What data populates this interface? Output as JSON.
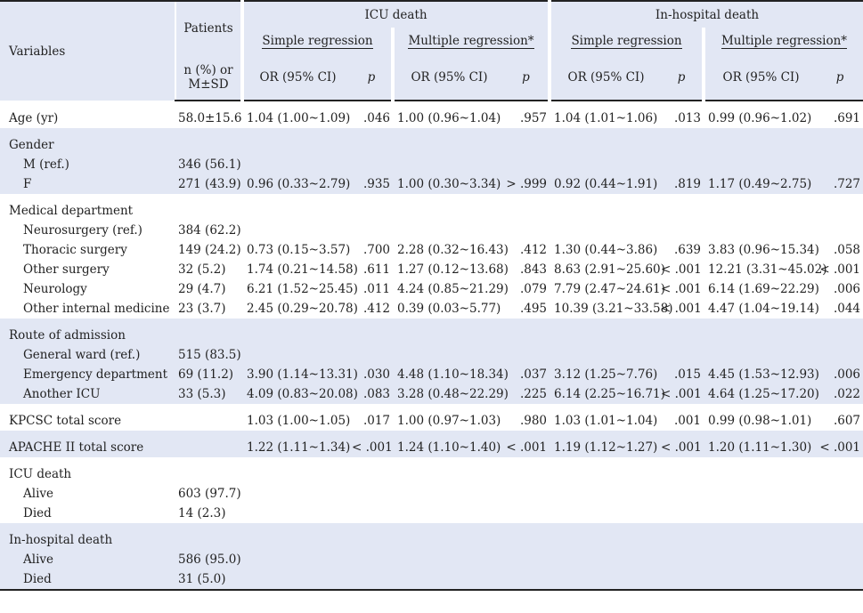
{
  "header": {
    "variables": "Variables",
    "patients": "Patients",
    "patients_unit_line1": "n (%) or",
    "patients_unit_line2": "M±SD",
    "icu_death": "ICU death",
    "inhospital_death": "In-hospital death",
    "simple_regression": "Simple regression",
    "multiple_regression": "Multiple regression*",
    "or_ci": "OR (95% CI)",
    "p": "p"
  },
  "groups": [
    {
      "shaded": false,
      "rows": [
        {
          "label": "Age (yr)",
          "sub": false,
          "patients": "58.0±15.6",
          "icu_s_or": "1.04 (1.00~1.09)",
          "icu_s_p": ".046",
          "icu_m_or": "1.00 (0.96~1.04)",
          "icu_m_p": ".957",
          "hos_s_or": "1.04 (1.01~1.06)",
          "hos_s_p": ".013",
          "hos_m_or": "0.99 (0.96~1.02)",
          "hos_m_p": ".691"
        }
      ]
    },
    {
      "shaded": true,
      "rows": [
        {
          "label": "Gender",
          "sub": false,
          "patients": "",
          "icu_s_or": "",
          "icu_s_p": "",
          "icu_m_or": "",
          "icu_m_p": "",
          "hos_s_or": "",
          "hos_s_p": "",
          "hos_m_or": "",
          "hos_m_p": ""
        },
        {
          "label": "M (ref.)",
          "sub": true,
          "patients": "346 (56.1)",
          "icu_s_or": "",
          "icu_s_p": "",
          "icu_m_or": "",
          "icu_m_p": "",
          "hos_s_or": "",
          "hos_s_p": "",
          "hos_m_or": "",
          "hos_m_p": ""
        },
        {
          "label": "F",
          "sub": true,
          "patients": "271 (43.9)",
          "icu_s_or": "0.96 (0.33~2.79)",
          "icu_s_p": ".935",
          "icu_m_or": "1.00 (0.30~3.34)",
          "icu_m_p": "> .999",
          "hos_s_or": "0.92 (0.44~1.91)",
          "hos_s_p": ".819",
          "hos_m_or": "1.17 (0.49~2.75)",
          "hos_m_p": ".727"
        }
      ]
    },
    {
      "shaded": false,
      "rows": [
        {
          "label": "Medical department",
          "sub": false,
          "patients": "",
          "icu_s_or": "",
          "icu_s_p": "",
          "icu_m_or": "",
          "icu_m_p": "",
          "hos_s_or": "",
          "hos_s_p": "",
          "hos_m_or": "",
          "hos_m_p": ""
        },
        {
          "label": "Neurosurgery (ref.)",
          "sub": true,
          "patients": "384 (62.2)",
          "icu_s_or": "",
          "icu_s_p": "",
          "icu_m_or": "",
          "icu_m_p": "",
          "hos_s_or": "",
          "hos_s_p": "",
          "hos_m_or": "",
          "hos_m_p": ""
        },
        {
          "label": "Thoracic surgery",
          "sub": true,
          "patients": "149 (24.2)",
          "icu_s_or": "0.73 (0.15~3.57)",
          "icu_s_p": ".700",
          "icu_m_or": "2.28 (0.32~16.43)",
          "icu_m_p": ".412",
          "hos_s_or": "1.30 (0.44~3.86)",
          "hos_s_p": ".639",
          "hos_m_or": "3.83 (0.96~15.34)",
          "hos_m_p": ".058"
        },
        {
          "label": "Other surgery",
          "sub": true,
          "patients": "32 (5.2)",
          "icu_s_or": "1.74 (0.21~14.58)",
          "icu_s_p": ".611",
          "icu_m_or": "1.27 (0.12~13.68)",
          "icu_m_p": ".843",
          "hos_s_or": "8.63 (2.91~25.60)",
          "hos_s_p": "< .001",
          "hos_m_or": "12.21 (3.31~45.02)",
          "hos_m_p": "< .001"
        },
        {
          "label": "Neurology",
          "sub": true,
          "patients": "29 (4.7)",
          "icu_s_or": "6.21 (1.52~25.45)",
          "icu_s_p": ".011",
          "icu_m_or": "4.24 (0.85~21.29)",
          "icu_m_p": ".079",
          "hos_s_or": "7.79 (2.47~24.61)",
          "hos_s_p": "< .001",
          "hos_m_or": "6.14 (1.69~22.29)",
          "hos_m_p": ".006"
        },
        {
          "label": "Other internal medicine",
          "sub": true,
          "patients": "23 (3.7)",
          "icu_s_or": "2.45 (0.29~20.78)",
          "icu_s_p": ".412",
          "icu_m_or": "0.39 (0.03~5.77)",
          "icu_m_p": ".495",
          "hos_s_or": "10.39 (3.21~33.58)",
          "hos_s_p": "< .001",
          "hos_m_or": "4.47 (1.04~19.14)",
          "hos_m_p": ".044"
        }
      ]
    },
    {
      "shaded": true,
      "rows": [
        {
          "label": "Route of admission",
          "sub": false,
          "patients": "",
          "icu_s_or": "",
          "icu_s_p": "",
          "icu_m_or": "",
          "icu_m_p": "",
          "hos_s_or": "",
          "hos_s_p": "",
          "hos_m_or": "",
          "hos_m_p": ""
        },
        {
          "label": "General ward (ref.)",
          "sub": true,
          "patients": "515 (83.5)",
          "icu_s_or": "",
          "icu_s_p": "",
          "icu_m_or": "",
          "icu_m_p": "",
          "hos_s_or": "",
          "hos_s_p": "",
          "hos_m_or": "",
          "hos_m_p": ""
        },
        {
          "label": "Emergency department",
          "sub": true,
          "patients": "69 (11.2)",
          "icu_s_or": "3.90 (1.14~13.31)",
          "icu_s_p": ".030",
          "icu_m_or": "4.48 (1.10~18.34)",
          "icu_m_p": ".037",
          "hos_s_or": "3.12 (1.25~7.76)",
          "hos_s_p": ".015",
          "hos_m_or": "4.45 (1.53~12.93)",
          "hos_m_p": ".006"
        },
        {
          "label": "Another ICU",
          "sub": true,
          "patients": "33 (5.3)",
          "icu_s_or": "4.09 (0.83~20.08)",
          "icu_s_p": ".083",
          "icu_m_or": "3.28 (0.48~22.29)",
          "icu_m_p": ".225",
          "hos_s_or": "6.14 (2.25~16.71)",
          "hos_s_p": "< .001",
          "hos_m_or": "4.64 (1.25~17.20)",
          "hos_m_p": ".022"
        }
      ]
    },
    {
      "shaded": false,
      "rows": [
        {
          "label": "KPCSC total score",
          "sub": false,
          "patients": "",
          "icu_s_or": "1.03 (1.00~1.05)",
          "icu_s_p": ".017",
          "icu_m_or": "1.00 (0.97~1.03)",
          "icu_m_p": ".980",
          "hos_s_or": "1.03 (1.01~1.04)",
          "hos_s_p": ".001",
          "hos_m_or": "0.99 (0.98~1.01)",
          "hos_m_p": ".607"
        }
      ]
    },
    {
      "shaded": true,
      "rows": [
        {
          "label": "APACHE II total score",
          "sub": false,
          "patients": "",
          "icu_s_or": "1.22 (1.11~1.34)",
          "icu_s_p": "< .001",
          "icu_m_or": "1.24 (1.10~1.40)",
          "icu_m_p": "< .001",
          "hos_s_or": "1.19 (1.12~1.27)",
          "hos_s_p": "< .001",
          "hos_m_or": "1.20 (1.11~1.30)",
          "hos_m_p": "< .001"
        }
      ]
    },
    {
      "shaded": false,
      "rows": [
        {
          "label": "ICU death",
          "sub": false,
          "patients": "",
          "icu_s_or": "",
          "icu_s_p": "",
          "icu_m_or": "",
          "icu_m_p": "",
          "hos_s_or": "",
          "hos_s_p": "",
          "hos_m_or": "",
          "hos_m_p": ""
        },
        {
          "label": "Alive",
          "sub": true,
          "patients": "603 (97.7)",
          "icu_s_or": "",
          "icu_s_p": "",
          "icu_m_or": "",
          "icu_m_p": "",
          "hos_s_or": "",
          "hos_s_p": "",
          "hos_m_or": "",
          "hos_m_p": ""
        },
        {
          "label": "Died",
          "sub": true,
          "patients": "14 (2.3)",
          "icu_s_or": "",
          "icu_s_p": "",
          "icu_m_or": "",
          "icu_m_p": "",
          "hos_s_or": "",
          "hos_s_p": "",
          "hos_m_or": "",
          "hos_m_p": ""
        }
      ]
    },
    {
      "shaded": true,
      "rows": [
        {
          "label": "In-hospital death",
          "sub": false,
          "patients": "",
          "icu_s_or": "",
          "icu_s_p": "",
          "icu_m_or": "",
          "icu_m_p": "",
          "hos_s_or": "",
          "hos_s_p": "",
          "hos_m_or": "",
          "hos_m_p": ""
        },
        {
          "label": "Alive",
          "sub": true,
          "patients": "586 (95.0)",
          "icu_s_or": "",
          "icu_s_p": "",
          "icu_m_or": "",
          "icu_m_p": "",
          "hos_s_or": "",
          "hos_s_p": "",
          "hos_m_or": "",
          "hos_m_p": ""
        },
        {
          "label": "Died",
          "sub": true,
          "patients": "31 (5.0)",
          "icu_s_or": "",
          "icu_s_p": "",
          "icu_m_or": "",
          "icu_m_p": "",
          "hos_s_or": "",
          "hos_s_p": "",
          "hos_m_or": "",
          "hos_m_p": ""
        }
      ]
    }
  ]
}
